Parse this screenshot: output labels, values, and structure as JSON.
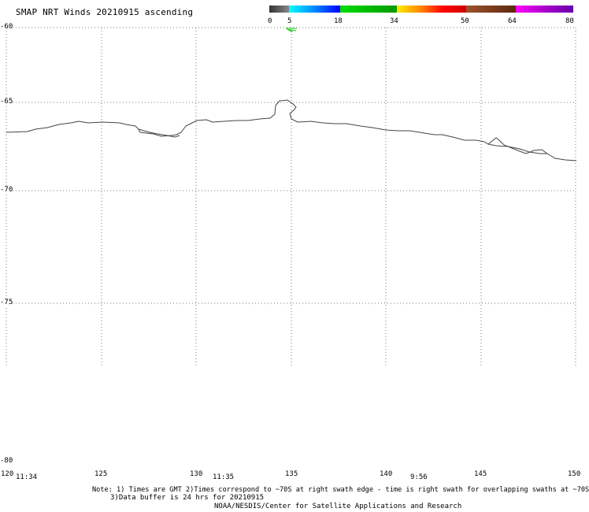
{
  "title": "SMAP NRT Winds 20210915 ascending",
  "colorbar": {
    "tick_labels": [
      "0",
      "5",
      "18",
      "34",
      "50",
      "64",
      "80"
    ],
    "segments": [
      {
        "from": 0,
        "to": 5,
        "color": "#555555"
      },
      {
        "from": 5,
        "to": 18,
        "color": "#00aaff"
      },
      {
        "from": 18,
        "to": 34,
        "color": "#00cc00"
      },
      {
        "from": 34,
        "to": 50,
        "color": "#ff8800"
      },
      {
        "from": 50,
        "to": 64,
        "color": "#8b4513"
      },
      {
        "from": 64,
        "to": 80,
        "color": "#cc00cc"
      }
    ]
  },
  "axes": {
    "lat_labels": [
      "-60",
      "-65",
      "-70",
      "-75",
      "-80"
    ],
    "lon_labels": [
      "120",
      "125",
      "130",
      "135",
      "140",
      "145",
      "150"
    ],
    "lat_range": [
      -80,
      -60
    ],
    "lon_range": [
      120,
      150
    ]
  },
  "swath_times": [
    "11:34",
    "11:35",
    "9:56"
  ],
  "notes": {
    "line1": "Note: 1) Times are GMT 2)Times correspond to ~70S at right swath edge - time is right swath for overlapping swaths at ~70S",
    "line2": "3)Data buffer is 24 hrs for 20210915",
    "line3": "NOAA/NESDIS/Center for Satellite Applications and Research"
  },
  "wind_barb_color": "#22cc22",
  "coastline_color": "#444444"
}
